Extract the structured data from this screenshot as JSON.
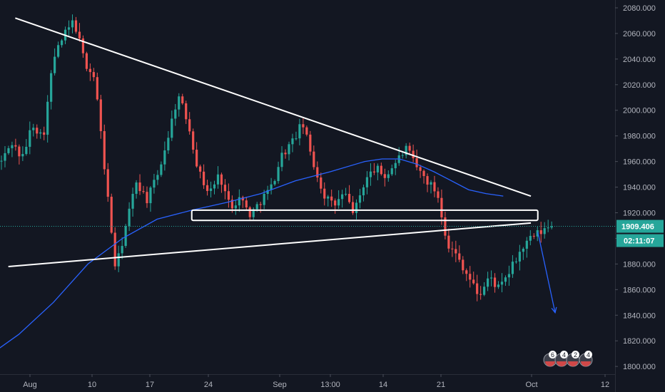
{
  "chart_data": {
    "type": "candlestick",
    "x_axis": {
      "tick_labels": [
        "Aug",
        "10",
        "17",
        "24",
        "Sep",
        "13:00",
        "14",
        "21",
        "Oct",
        "12"
      ]
    },
    "y_axis": {
      "range": [
        1795,
        2085
      ],
      "tick_values": [
        1800,
        1820,
        1840,
        1860,
        1880,
        1900,
        1920,
        1940,
        1960,
        1980,
        2000,
        2020,
        2040,
        2060,
        2080
      ],
      "tick_labels": [
        "1800.000",
        "1820.000",
        "1840.000",
        "1860.000",
        "1880.000",
        "1900.000",
        "1920.000",
        "1940.000",
        "1960.000",
        "1980.000",
        "2000.000",
        "2020.000",
        "2040.000",
        "2060.000",
        "2080.000"
      ]
    },
    "last_price": {
      "value": 1909.406,
      "label": "1909.406",
      "countdown": "02:11:07"
    },
    "price_path": [
      [
        0,
        1960
      ],
      [
        3,
        1975
      ],
      [
        6,
        1962
      ],
      [
        9,
        1990
      ],
      [
        12,
        1978
      ],
      [
        15,
        2040
      ],
      [
        18,
        2058
      ],
      [
        21,
        2070
      ],
      [
        24,
        2038
      ],
      [
        27,
        2025
      ],
      [
        30,
        1950
      ],
      [
        33,
        1875
      ],
      [
        36,
        1910
      ],
      [
        39,
        1945
      ],
      [
        42,
        1930
      ],
      [
        45,
        1948
      ],
      [
        48,
        1978
      ],
      [
        51,
        2012
      ],
      [
        54,
        1990
      ],
      [
        57,
        1952
      ],
      [
        60,
        1935
      ],
      [
        63,
        1950
      ],
      [
        66,
        1925
      ],
      [
        69,
        1932
      ],
      [
        72,
        1918
      ],
      [
        75,
        1930
      ],
      [
        78,
        1940
      ],
      [
        81,
        1965
      ],
      [
        84,
        1975
      ],
      [
        87,
        1990
      ],
      [
        90,
        1960
      ],
      [
        93,
        1935
      ],
      [
        96,
        1925
      ],
      [
        99,
        1935
      ],
      [
        102,
        1920
      ],
      [
        105,
        1945
      ],
      [
        108,
        1955
      ],
      [
        111,
        1948
      ],
      [
        114,
        1960
      ],
      [
        117,
        1970
      ],
      [
        120,
        1955
      ],
      [
        123,
        1945
      ],
      [
        126,
        1935
      ],
      [
        129,
        1895
      ],
      [
        132,
        1885
      ],
      [
        135,
        1870
      ],
      [
        138,
        1855
      ],
      [
        141,
        1870
      ],
      [
        144,
        1860
      ],
      [
        147,
        1875
      ],
      [
        150,
        1890
      ],
      [
        153,
        1900
      ],
      [
        156,
        1905
      ],
      [
        159,
        1910
      ]
    ],
    "moving_average": [
      [
        -8,
        1800
      ],
      [
        5,
        1825
      ],
      [
        15,
        1850
      ],
      [
        25,
        1880
      ],
      [
        35,
        1900
      ],
      [
        45,
        1915
      ],
      [
        55,
        1922
      ],
      [
        65,
        1928
      ],
      [
        75,
        1935
      ],
      [
        85,
        1945
      ],
      [
        95,
        1952
      ],
      [
        105,
        1960
      ],
      [
        110,
        1962
      ],
      [
        115,
        1962
      ],
      [
        120,
        1958
      ],
      [
        125,
        1952
      ],
      [
        130,
        1945
      ],
      [
        135,
        1938
      ],
      [
        140,
        1935
      ],
      [
        145,
        1933
      ]
    ],
    "annotations": {
      "upper_trendline": {
        "from": [
          4,
          2072
        ],
        "to": [
          153,
          1933
        ]
      },
      "lower_trendline": {
        "from": [
          2,
          1878
        ],
        "to": [
          153,
          1912
        ]
      },
      "support_box": {
        "from": [
          55,
          1914
        ],
        "to": [
          155,
          1922
        ]
      },
      "arrow": {
        "from": [
          155,
          1905
        ],
        "to": [
          160,
          1842
        ]
      }
    },
    "colors": {
      "background": "#131722",
      "up": "#26a69a",
      "down": "#ef5350",
      "moving_average": "#2962ff",
      "drawing": "#ffffff",
      "arrow": "#2962ff",
      "last_price": "#26a69a",
      "axis_text": "#b2b5be"
    },
    "event_badges": [
      "6",
      "4",
      "2",
      "4"
    ]
  }
}
